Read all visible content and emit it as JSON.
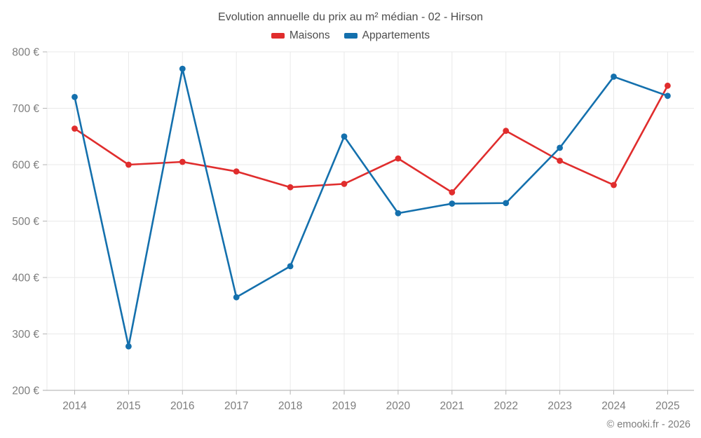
{
  "footer": {
    "copyright": "© emooki.fr - 2026"
  },
  "chart_data": {
    "type": "line",
    "title": "Evolution annuelle du prix au m² médian - 02 - Hirson",
    "x": [
      2014,
      2015,
      2016,
      2017,
      2018,
      2019,
      2020,
      2021,
      2022,
      2023,
      2024,
      2025
    ],
    "series": [
      {
        "name": "Maisons",
        "color": "#e02d2d",
        "values": [
          664,
          600,
          605,
          588,
          560,
          566,
          611,
          551,
          660,
          607,
          564,
          740
        ]
      },
      {
        "name": "Appartements",
        "color": "#1470ad",
        "values": [
          720,
          278,
          770,
          365,
          420,
          650,
          514,
          531,
          532,
          630,
          756,
          722
        ]
      }
    ],
    "xlabel": "",
    "ylabel": "",
    "ytick_suffix": " €",
    "ylim": [
      200,
      800
    ],
    "ytick_step": 100,
    "grid": true,
    "legend_position": "top",
    "styles": {
      "grid_color": "#e9e9e9",
      "axis_color": "#ababab",
      "tick_color": "#b5b5b5",
      "axis_text_color": "#7d7d7d"
    }
  }
}
